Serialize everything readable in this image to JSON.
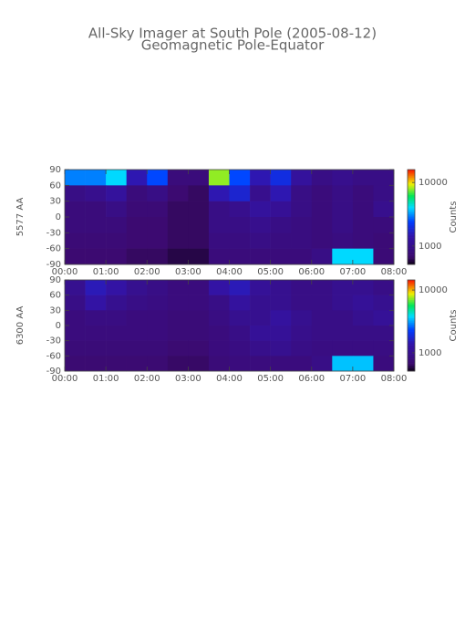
{
  "title": "All-Sky Imager at South Pole (2005-08-12)",
  "subtitle": "Geomagnetic Pole-Equator",
  "chart_data": [
    {
      "type": "heatmap",
      "ylabel": "5577 AA",
      "color_scale": "log",
      "colorbar_label": "Counts",
      "x": [
        0.25,
        0.75,
        1.25,
        1.75,
        2.25,
        2.75,
        3.25,
        3.75,
        4.25,
        4.75,
        5.25,
        5.75,
        6.25,
        6.75,
        7.25,
        7.75
      ],
      "y": [
        75,
        45,
        15,
        -15,
        -45,
        -75
      ],
      "values": [
        [
          3000,
          3000,
          4000,
          1500,
          2500,
          800,
          800,
          8000,
          2500,
          1500,
          2000,
          1200,
          900,
          1000,
          900,
          900
        ],
        [
          900,
          1000,
          1200,
          800,
          900,
          700,
          650,
          1500,
          1800,
          1000,
          1500,
          900,
          800,
          900,
          800,
          900
        ],
        [
          800,
          800,
          900,
          750,
          750,
          650,
          650,
          900,
          1000,
          1200,
          1100,
          900,
          800,
          900,
          800,
          1000
        ],
        [
          800,
          800,
          800,
          700,
          700,
          650,
          650,
          900,
          900,
          1000,
          900,
          850,
          800,
          900,
          800,
          800
        ],
        [
          750,
          750,
          750,
          700,
          700,
          650,
          650,
          850,
          850,
          900,
          850,
          850,
          800,
          850,
          800,
          750
        ],
        [
          700,
          700,
          700,
          650,
          650,
          600,
          600,
          800,
          800,
          800,
          800,
          800,
          900,
          4000,
          4000,
          750
        ]
      ],
      "xlim": [
        0,
        8
      ],
      "xticks": [
        {
          "value": 0,
          "label": "00:00"
        },
        {
          "value": 1,
          "label": "01:00"
        },
        {
          "value": 2,
          "label": "02:00"
        },
        {
          "value": 3,
          "label": "03:00"
        },
        {
          "value": 4,
          "label": "04:00"
        },
        {
          "value": 5,
          "label": "05:00"
        },
        {
          "value": 6,
          "label": "06:00"
        },
        {
          "value": 7,
          "label": "07:00"
        },
        {
          "value": 8,
          "label": "08:00"
        }
      ],
      "ylim": [
        -90,
        90
      ],
      "yticks": [
        90,
        60,
        30,
        0,
        -30,
        -60,
        -90
      ],
      "clim": [
        513,
        16000
      ],
      "cticks": [
        10000,
        1000
      ]
    },
    {
      "type": "heatmap",
      "ylabel": "6300 AA",
      "color_scale": "log",
      "colorbar_label": "Counts",
      "x": [
        0.25,
        0.75,
        1.25,
        1.75,
        2.25,
        2.75,
        3.25,
        3.75,
        4.25,
        4.75,
        5.25,
        5.75,
        6.25,
        6.75,
        7.25,
        7.75
      ],
      "y": [
        75,
        45,
        15,
        -15,
        -45,
        -75
      ],
      "values": [
        [
          1000,
          1500,
          1300,
          1000,
          900,
          800,
          800,
          1300,
          1500,
          1100,
          1000,
          900,
          900,
          1000,
          1000,
          900
        ],
        [
          900,
          1300,
          1000,
          900,
          850,
          800,
          800,
          900,
          1200,
          1000,
          1000,
          900,
          900,
          1000,
          1100,
          1000
        ],
        [
          800,
          850,
          850,
          800,
          800,
          750,
          750,
          850,
          1000,
          1000,
          1200,
          1000,
          900,
          900,
          1000,
          1100
        ],
        [
          800,
          800,
          800,
          800,
          800,
          750,
          750,
          800,
          900,
          1100,
          1100,
          950,
          900,
          900,
          900,
          900
        ],
        [
          750,
          750,
          750,
          750,
          750,
          700,
          700,
          800,
          850,
          950,
          1000,
          900,
          850,
          850,
          850,
          850
        ],
        [
          700,
          700,
          700,
          700,
          700,
          650,
          650,
          750,
          800,
          800,
          800,
          800,
          900,
          3500,
          3500,
          800
        ]
      ],
      "xlim": [
        0,
        8
      ],
      "xticks": [
        {
          "value": 0,
          "label": "00:00"
        },
        {
          "value": 1,
          "label": "01:00"
        },
        {
          "value": 2,
          "label": "02:00"
        },
        {
          "value": 3,
          "label": "03:00"
        },
        {
          "value": 4,
          "label": "04:00"
        },
        {
          "value": 5,
          "label": "05:00"
        },
        {
          "value": 6,
          "label": "06:00"
        },
        {
          "value": 7,
          "label": "07:00"
        },
        {
          "value": 8,
          "label": "08:00"
        }
      ],
      "ylim": [
        -90,
        90
      ],
      "yticks": [
        90,
        60,
        30,
        0,
        -30,
        -60,
        -90
      ],
      "clim": [
        510,
        14500
      ],
      "cticks": [
        10000,
        1000
      ]
    }
  ]
}
